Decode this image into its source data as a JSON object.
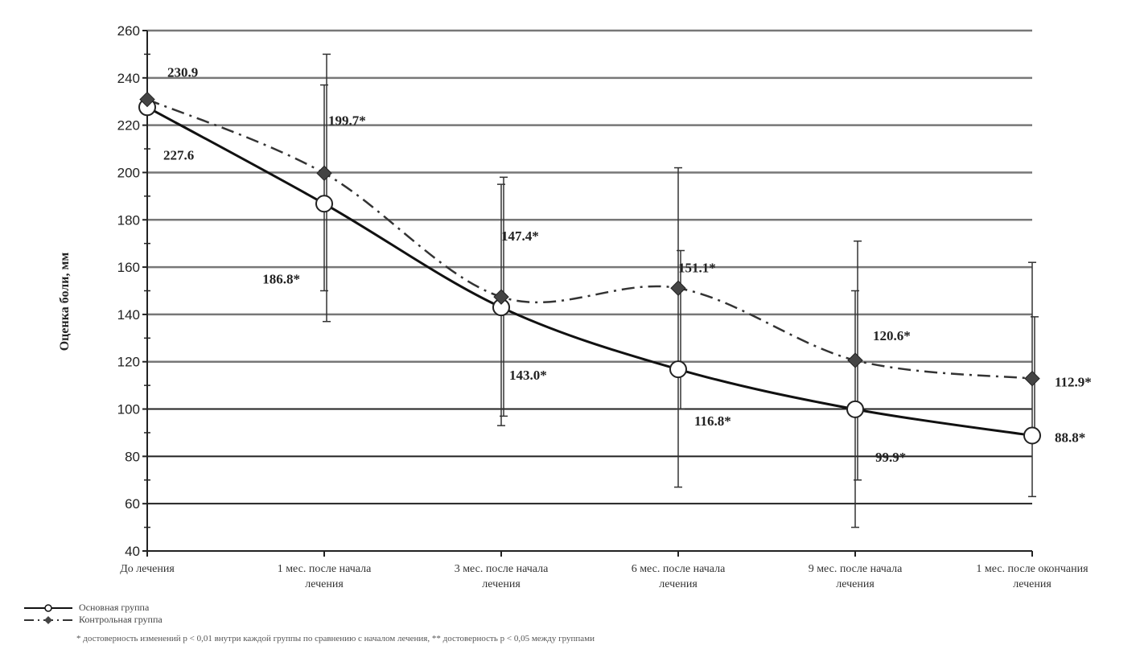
{
  "chart_data": {
    "type": "line",
    "title": "",
    "ylabel": "Оценка боли, мм",
    "xlabel": "",
    "ylim": [
      40,
      260
    ],
    "yticks": [
      40,
      60,
      80,
      100,
      120,
      140,
      160,
      180,
      200,
      220,
      240,
      260
    ],
    "categories": [
      [
        "До лечения"
      ],
      [
        "1 мес. после начала",
        "лечения"
      ],
      [
        "3 мес. после начала",
        "лечения"
      ],
      [
        "6 мес. после начала",
        "лечения"
      ],
      [
        "9 мес. после начала",
        "лечения"
      ],
      [
        "1 мес. после окончания",
        "лечения"
      ]
    ],
    "series": [
      {
        "name": "Основная группа",
        "style": "solid",
        "marker": "open-circle",
        "color": "#111111",
        "values": [
          227.6,
          186.8,
          143.0,
          116.8,
          99.9,
          88.8
        ],
        "labels": [
          "227.6",
          "186.8*",
          "143.0*",
          "116.8*",
          "99.9*",
          "88.8*"
        ],
        "errors": [
          null,
          [
            150,
            237
          ],
          [
            93,
            195
          ],
          [
            67,
            202
          ],
          [
            50,
            150
          ],
          [
            63,
            162
          ]
        ]
      },
      {
        "name": "Контрольная группа",
        "style": "dashdot",
        "marker": "filled-diamond",
        "color": "#333333",
        "values": [
          230.9,
          199.7,
          147.4,
          151.1,
          120.6,
          112.9
        ],
        "labels": [
          "230.9",
          "199.7*",
          "147.4*",
          "151.1*",
          "120.6*",
          "112.9*"
        ],
        "errors": [
          null,
          [
            137,
            250
          ],
          [
            97,
            198
          ],
          [
            100,
            167
          ],
          [
            70,
            171
          ],
          [
            88,
            139
          ]
        ]
      }
    ],
    "grid": true,
    "legend_position": "bottom-left"
  },
  "footnote": "* достоверность изменений р < 0,01 внутри каждой группы по сравнению с началом лечения, ** достоверность р < 0,05 между группами"
}
